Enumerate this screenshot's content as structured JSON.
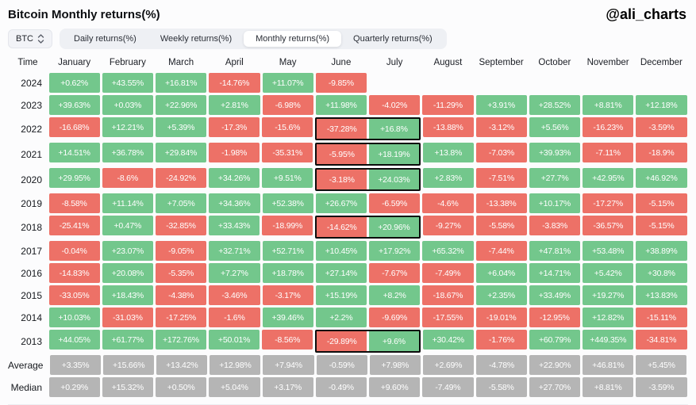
{
  "header": {
    "title": "Bitcoin Monthly returns(%)",
    "handle": "@ali_charts"
  },
  "controls": {
    "symbol_select": {
      "value": "BTC"
    },
    "tabs": [
      {
        "label": "Daily returns(%)",
        "active": false
      },
      {
        "label": "Weekly returns(%)",
        "active": false
      },
      {
        "label": "Monthly returns(%)",
        "active": true
      },
      {
        "label": "Quarterly returns(%)",
        "active": false
      }
    ]
  },
  "chart_data": {
    "type": "heatmap",
    "title": "Bitcoin Monthly returns(%)",
    "time_column_header": "Time",
    "columns": [
      "January",
      "February",
      "March",
      "April",
      "May",
      "June",
      "July",
      "August",
      "September",
      "October",
      "November",
      "December"
    ],
    "rows": [
      {
        "label": "2024",
        "type": "year",
        "values": [
          "+0.62%",
          "+43.55%",
          "+16.81%",
          "-14.76%",
          "+11.07%",
          "-9.85%",
          null,
          null,
          null,
          null,
          null,
          null
        ]
      },
      {
        "label": "2023",
        "type": "year",
        "values": [
          "+39.63%",
          "+0.03%",
          "+22.96%",
          "+2.81%",
          "-6.98%",
          "+11.98%",
          "-4.02%",
          "-11.29%",
          "+3.91%",
          "+28.52%",
          "+8.81%",
          "+12.18%"
        ]
      },
      {
        "label": "2022",
        "type": "year",
        "values": [
          "-16.68%",
          "+12.21%",
          "+5.39%",
          "-17.3%",
          "-15.6%",
          "-37.28%",
          "+16.8%",
          "-13.88%",
          "-3.12%",
          "+5.56%",
          "-16.23%",
          "-3.59%"
        ]
      },
      {
        "label": "2021",
        "type": "year",
        "values": [
          "+14.51%",
          "+36.78%",
          "+29.84%",
          "-1.98%",
          "-35.31%",
          "-5.95%",
          "+18.19%",
          "+13.8%",
          "-7.03%",
          "+39.93%",
          "-7.11%",
          "-18.9%"
        ]
      },
      {
        "label": "2020",
        "type": "year",
        "values": [
          "+29.95%",
          "-8.6%",
          "-24.92%",
          "+34.26%",
          "+9.51%",
          "-3.18%",
          "+24.03%",
          "+2.83%",
          "-7.51%",
          "+27.7%",
          "+42.95%",
          "+46.92%"
        ]
      },
      {
        "label": "2019",
        "type": "year",
        "values": [
          "-8.58%",
          "+11.14%",
          "+7.05%",
          "+34.36%",
          "+52.38%",
          "+26.67%",
          "-6.59%",
          "-4.6%",
          "-13.38%",
          "+10.17%",
          "-17.27%",
          "-5.15%"
        ]
      },
      {
        "label": "2018",
        "type": "year",
        "values": [
          "-25.41%",
          "+0.47%",
          "-32.85%",
          "+33.43%",
          "-18.99%",
          "-14.62%",
          "+20.96%",
          "-9.27%",
          "-5.58%",
          "-3.83%",
          "-36.57%",
          "-5.15%"
        ]
      },
      {
        "label": "2017",
        "type": "year",
        "values": [
          "-0.04%",
          "+23.07%",
          "-9.05%",
          "+32.71%",
          "+52.71%",
          "+10.45%",
          "+17.92%",
          "+65.32%",
          "-7.44%",
          "+47.81%",
          "+53.48%",
          "+38.89%"
        ]
      },
      {
        "label": "2016",
        "type": "year",
        "values": [
          "-14.83%",
          "+20.08%",
          "-5.35%",
          "+7.27%",
          "+18.78%",
          "+27.14%",
          "-7.67%",
          "-7.49%",
          "+6.04%",
          "+14.71%",
          "+5.42%",
          "+30.8%"
        ]
      },
      {
        "label": "2015",
        "type": "year",
        "values": [
          "-33.05%",
          "+18.43%",
          "-4.38%",
          "-3.46%",
          "-3.17%",
          "+15.19%",
          "+8.2%",
          "-18.67%",
          "+2.35%",
          "+33.49%",
          "+19.27%",
          "+13.83%"
        ]
      },
      {
        "label": "2014",
        "type": "year",
        "values": [
          "+10.03%",
          "-31.03%",
          "-17.25%",
          "-1.6%",
          "+39.46%",
          "+2.2%",
          "-9.69%",
          "-17.55%",
          "-19.01%",
          "-12.95%",
          "+12.82%",
          "-15.11%"
        ]
      },
      {
        "label": "2013",
        "type": "year",
        "values": [
          "+44.05%",
          "+61.77%",
          "+172.76%",
          "+50.01%",
          "-8.56%",
          "-29.89%",
          "+9.6%",
          "+30.42%",
          "-1.76%",
          "+60.79%",
          "+449.35%",
          "-34.81%"
        ]
      },
      {
        "label": "Average",
        "type": "stat",
        "values": [
          "+3.35%",
          "+15.66%",
          "+13.42%",
          "+12.98%",
          "+7.94%",
          "-0.59%",
          "+7.98%",
          "+2.69%",
          "-4.78%",
          "+22.90%",
          "+46.81%",
          "+5.45%"
        ]
      },
      {
        "label": "Median",
        "type": "stat",
        "values": [
          "+0.29%",
          "+15.32%",
          "+0.50%",
          "+5.04%",
          "+3.17%",
          "-0.49%",
          "+9.60%",
          "-7.49%",
          "-5.58%",
          "+27.70%",
          "+8.81%",
          "-3.59%"
        ]
      }
    ],
    "highlight_months": [
      "June",
      "July"
    ],
    "highlight_jun_jul_years": [
      "2022",
      "2021",
      "2020",
      "2018",
      "2013"
    ],
    "colors": {
      "positive": "#73c78c",
      "negative": "#ed7167",
      "stat": "#b5b5b5",
      "highlight_border": "#0d0d0d"
    }
  }
}
